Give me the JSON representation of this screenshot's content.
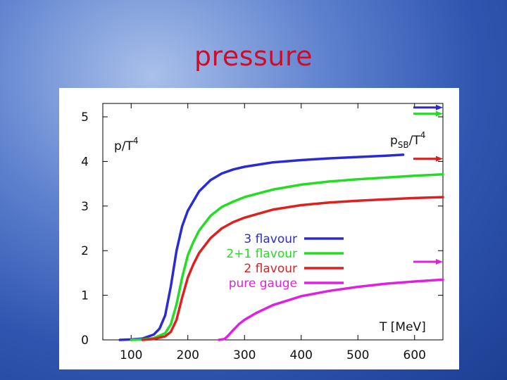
{
  "slide": {
    "title": "pressure"
  },
  "chart_data": {
    "type": "line",
    "title": "",
    "ylabel": "p/T",
    "ylabel_sup": "4",
    "xlabel": "T [MeV]",
    "sb_label_main": "p",
    "sb_label_sub": "SB",
    "sb_label_rest": "/T",
    "sb_label_sup": "4",
    "xlim": [
      50,
      650
    ],
    "ylim": [
      0,
      5.3
    ],
    "xticks": [
      100,
      200,
      300,
      400,
      500,
      600
    ],
    "yticks": [
      0,
      1,
      2,
      3,
      4,
      5
    ],
    "grid": false,
    "legend_position": "center",
    "series": [
      {
        "name": "3 flavour",
        "color": "#2b2bd4",
        "sb_limit": 5.21,
        "x": [
          80,
          100,
          120,
          140,
          150,
          160,
          170,
          180,
          190,
          200,
          220,
          240,
          260,
          280,
          300,
          350,
          400,
          450,
          500,
          550,
          580
        ],
        "y": [
          0.0,
          0.01,
          0.03,
          0.12,
          0.25,
          0.55,
          1.2,
          2.0,
          2.55,
          2.9,
          3.33,
          3.58,
          3.73,
          3.82,
          3.88,
          3.98,
          4.03,
          4.07,
          4.1,
          4.13,
          4.15
        ]
      },
      {
        "name": "2+1 flavour",
        "color": "#22dd22",
        "sb_limit": 5.07,
        "x": [
          100,
          120,
          140,
          160,
          170,
          180,
          190,
          200,
          210,
          220,
          240,
          260,
          280,
          300,
          350,
          400,
          450,
          500,
          550,
          600,
          650
        ],
        "y": [
          0.0,
          0.01,
          0.04,
          0.15,
          0.35,
          0.8,
          1.4,
          1.9,
          2.2,
          2.45,
          2.78,
          2.98,
          3.1,
          3.2,
          3.37,
          3.48,
          3.55,
          3.6,
          3.64,
          3.68,
          3.71
        ]
      },
      {
        "name": "2 flavour",
        "color": "#dd2020",
        "sb_limit": 4.06,
        "x": [
          120,
          140,
          160,
          170,
          180,
          190,
          200,
          210,
          220,
          240,
          260,
          280,
          300,
          350,
          400,
          450,
          500,
          550,
          600,
          650
        ],
        "y": [
          0.0,
          0.02,
          0.08,
          0.18,
          0.45,
          0.95,
          1.4,
          1.7,
          1.95,
          2.28,
          2.5,
          2.64,
          2.74,
          2.92,
          3.02,
          3.08,
          3.12,
          3.15,
          3.18,
          3.2
        ]
      },
      {
        "name": "pure gauge",
        "color": "#e020e0",
        "sb_limit": 1.75,
        "x": [
          255,
          265,
          270,
          280,
          290,
          300,
          320,
          350,
          400,
          450,
          500,
          550,
          600,
          650
        ],
        "y": [
          0.0,
          0.02,
          0.08,
          0.22,
          0.35,
          0.45,
          0.6,
          0.78,
          0.98,
          1.1,
          1.19,
          1.26,
          1.31,
          1.35
        ]
      }
    ]
  }
}
